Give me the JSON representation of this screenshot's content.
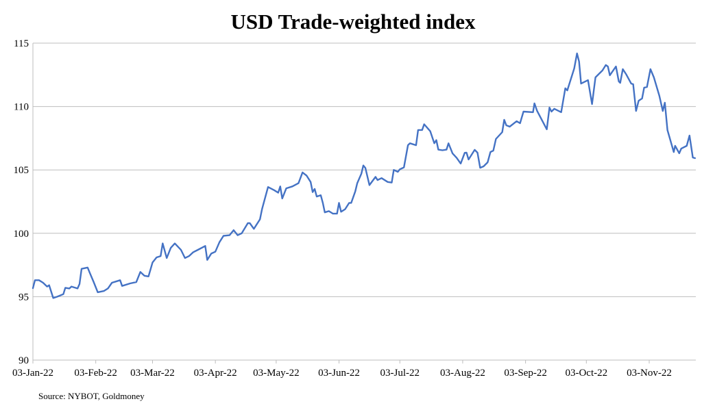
{
  "chart_data": {
    "type": "line",
    "title": "USD Trade-weighted index",
    "xlabel": "",
    "ylabel": "",
    "source": "Source: NYBOT, Goldmoney",
    "ylim": [
      90,
      115
    ],
    "yticks": [
      90,
      95,
      100,
      105,
      110,
      115
    ],
    "xlim_days_from_start": [
      0,
      327
    ],
    "xticks": [
      {
        "label": "03-Jan-22",
        "day": 0
      },
      {
        "label": "03-Feb-22",
        "day": 31
      },
      {
        "label": "03-Mar-22",
        "day": 59
      },
      {
        "label": "03-Apr-22",
        "day": 90
      },
      {
        "label": "03-May-22",
        "day": 120
      },
      {
        "label": "03-Jun-22",
        "day": 151
      },
      {
        "label": "03-Jul-22",
        "day": 181
      },
      {
        "label": "03-Aug-22",
        "day": 212
      },
      {
        "label": "03-Sep-22",
        "day": 243
      },
      {
        "label": "03-Oct-22",
        "day": 273
      },
      {
        "label": "03-Nov-22",
        "day": 304
      }
    ],
    "grid": true,
    "line_color": "#4472c4",
    "series": [
      {
        "name": "USD Trade-weighted index",
        "points": [
          [
            0,
            95.67
          ],
          [
            1,
            96.3
          ],
          [
            3,
            96.3
          ],
          [
            5,
            96.1
          ],
          [
            7,
            95.8
          ],
          [
            8,
            95.9
          ],
          [
            10,
            94.9
          ],
          [
            12,
            95.0
          ],
          [
            15,
            95.2
          ],
          [
            16,
            95.7
          ],
          [
            18,
            95.65
          ],
          [
            19,
            95.8
          ],
          [
            22,
            95.65
          ],
          [
            23,
            96.0
          ],
          [
            24,
            97.2
          ],
          [
            27,
            97.3
          ],
          [
            28,
            96.9
          ],
          [
            30,
            96.15
          ],
          [
            32,
            95.35
          ],
          [
            35,
            95.45
          ],
          [
            37,
            95.65
          ],
          [
            39,
            96.1
          ],
          [
            41,
            96.2
          ],
          [
            43,
            96.3
          ],
          [
            44,
            95.85
          ],
          [
            48,
            96.05
          ],
          [
            51,
            96.15
          ],
          [
            53,
            96.95
          ],
          [
            55,
            96.65
          ],
          [
            57,
            96.6
          ],
          [
            59,
            97.7
          ],
          [
            61,
            98.1
          ],
          [
            63,
            98.2
          ],
          [
            64,
            99.2
          ],
          [
            66,
            98.05
          ],
          [
            68,
            98.85
          ],
          [
            70,
            99.2
          ],
          [
            73,
            98.7
          ],
          [
            75,
            98.05
          ],
          [
            77,
            98.2
          ],
          [
            79,
            98.5
          ],
          [
            82,
            98.75
          ],
          [
            85,
            99.0
          ],
          [
            86,
            97.9
          ],
          [
            88,
            98.4
          ],
          [
            90,
            98.55
          ],
          [
            92,
            99.3
          ],
          [
            94,
            99.8
          ],
          [
            97,
            99.85
          ],
          [
            99,
            100.25
          ],
          [
            101,
            99.85
          ],
          [
            103,
            100.0
          ],
          [
            106,
            100.8
          ],
          [
            107,
            100.8
          ],
          [
            109,
            100.35
          ],
          [
            112,
            101.1
          ],
          [
            113,
            101.9
          ],
          [
            116,
            103.65
          ],
          [
            119,
            103.4
          ],
          [
            121,
            103.2
          ],
          [
            122,
            103.7
          ],
          [
            123,
            102.75
          ],
          [
            125,
            103.55
          ],
          [
            128,
            103.7
          ],
          [
            131,
            103.95
          ],
          [
            133,
            104.8
          ],
          [
            135,
            104.55
          ],
          [
            137,
            104.05
          ],
          [
            138,
            103.25
          ],
          [
            139,
            103.5
          ],
          [
            140,
            102.9
          ],
          [
            142,
            103.0
          ],
          [
            143,
            102.4
          ],
          [
            144,
            101.65
          ],
          [
            146,
            101.75
          ],
          [
            148,
            101.55
          ],
          [
            150,
            101.55
          ],
          [
            151,
            102.4
          ],
          [
            152,
            101.7
          ],
          [
            154,
            101.9
          ],
          [
            156,
            102.4
          ],
          [
            157,
            102.4
          ],
          [
            159,
            103.3
          ],
          [
            160,
            103.95
          ],
          [
            162,
            104.7
          ],
          [
            163,
            105.35
          ],
          [
            164,
            105.15
          ],
          [
            166,
            103.8
          ],
          [
            169,
            104.45
          ],
          [
            170,
            104.2
          ],
          [
            172,
            104.35
          ],
          [
            175,
            104.05
          ],
          [
            177,
            104.0
          ],
          [
            178,
            105.0
          ],
          [
            180,
            104.85
          ],
          [
            181,
            105.05
          ],
          [
            183,
            105.2
          ],
          [
            185,
            106.95
          ],
          [
            186,
            107.1
          ],
          [
            189,
            106.95
          ],
          [
            190,
            108.15
          ],
          [
            192,
            108.15
          ],
          [
            193,
            108.6
          ],
          [
            196,
            108.05
          ],
          [
            198,
            107.1
          ],
          [
            199,
            107.35
          ],
          [
            200,
            106.6
          ],
          [
            202,
            106.55
          ],
          [
            204,
            106.6
          ],
          [
            205,
            107.1
          ],
          [
            207,
            106.3
          ],
          [
            209,
            105.95
          ],
          [
            211,
            105.5
          ],
          [
            213,
            106.35
          ],
          [
            213.9,
            106.36
          ],
          [
            214.9,
            105.82
          ],
          [
            217.9,
            106.58
          ],
          [
            219.3,
            106.36
          ],
          [
            220.6,
            105.17
          ],
          [
            222.3,
            105.28
          ],
          [
            224.3,
            105.6
          ],
          [
            225.7,
            106.41
          ],
          [
            227.1,
            106.52
          ],
          [
            228.4,
            107.44
          ],
          [
            231.5,
            107.98
          ],
          [
            232.5,
            108.95
          ],
          [
            233.5,
            108.52
          ],
          [
            235.2,
            108.41
          ],
          [
            238.6,
            108.84
          ],
          [
            240.3,
            108.68
          ],
          [
            242.0,
            109.6
          ],
          [
            246.7,
            109.55
          ],
          [
            247.4,
            110.25
          ],
          [
            248.7,
            109.65
          ],
          [
            253.5,
            108.2
          ],
          [
            254.8,
            109.92
          ],
          [
            255.8,
            109.6
          ],
          [
            257.2,
            109.82
          ],
          [
            260.6,
            109.55
          ],
          [
            262.6,
            111.44
          ],
          [
            263.6,
            111.27
          ],
          [
            267.0,
            113.0
          ],
          [
            268.4,
            114.19
          ],
          [
            269.4,
            113.54
          ],
          [
            270.4,
            111.81
          ],
          [
            273.8,
            112.08
          ],
          [
            275.8,
            110.19
          ],
          [
            277.5,
            112.3
          ],
          [
            279.2,
            112.57
          ],
          [
            280.9,
            112.84
          ],
          [
            282.6,
            113.27
          ],
          [
            283.6,
            113.16
          ],
          [
            284.6,
            112.46
          ],
          [
            287.6,
            113.16
          ],
          [
            289.0,
            111.98
          ],
          [
            289.7,
            111.87
          ],
          [
            291.0,
            112.95
          ],
          [
            292.7,
            112.52
          ],
          [
            295.1,
            111.81
          ],
          [
            296.1,
            111.76
          ],
          [
            297.5,
            109.65
          ],
          [
            298.8,
            110.46
          ],
          [
            300.5,
            110.63
          ],
          [
            301.5,
            111.49
          ],
          [
            302.9,
            111.54
          ],
          [
            304.6,
            112.95
          ],
          [
            306.3,
            112.3
          ],
          [
            309.0,
            110.84
          ],
          [
            310.7,
            109.65
          ],
          [
            311.7,
            110.3
          ],
          [
            313.0,
            108.14
          ],
          [
            316.1,
            106.41
          ],
          [
            316.8,
            106.9
          ],
          [
            318.8,
            106.31
          ],
          [
            319.8,
            106.68
          ],
          [
            322.5,
            106.9
          ],
          [
            323.9,
            107.71
          ],
          [
            325.5,
            105.98
          ],
          [
            326.6,
            105.93
          ]
        ]
      }
    ]
  }
}
